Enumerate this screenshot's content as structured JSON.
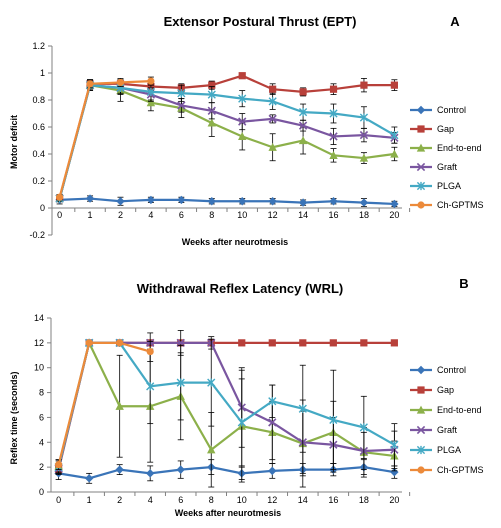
{
  "chart_data": [
    {
      "type": "line",
      "panel_label": "A",
      "title": "Extensor Postural Thrust (EPT)",
      "xlabel": "Weeks after neurotmesis",
      "ylabel": "Motor deficit",
      "x_ticks": [
        0,
        1,
        2,
        4,
        6,
        8,
        10,
        12,
        14,
        16,
        18,
        20
      ],
      "y_ticks": [
        "-0.2",
        "0",
        "0.2",
        "0.4",
        "0.6",
        "0.8",
        "1",
        "1.2"
      ],
      "ylim": [
        -0.2,
        1.2
      ],
      "grid": false,
      "legend_position": "right",
      "series": [
        {
          "name": "Control",
          "color": "#3a74b8",
          "marker": "diamond",
          "x": [
            0,
            1,
            2,
            4,
            6,
            8,
            10,
            12,
            14,
            16,
            18,
            20
          ],
          "y": [
            0.06,
            0.07,
            0.05,
            0.06,
            0.06,
            0.05,
            0.05,
            0.05,
            0.04,
            0.05,
            0.04,
            0.03
          ],
          "err": [
            0.03,
            0.02,
            0.03,
            0.02,
            0.02,
            0.02,
            0.02,
            0.02,
            0.02,
            0.02,
            0.03,
            0.02
          ]
        },
        {
          "name": "Gap",
          "color": "#b8403a",
          "marker": "square",
          "x": [
            0,
            1,
            2,
            4,
            6,
            8,
            10,
            12,
            14,
            16,
            18,
            20
          ],
          "y": [
            0.07,
            0.92,
            0.92,
            0.9,
            0.89,
            0.91,
            0.98,
            0.88,
            0.86,
            0.88,
            0.91,
            0.91
          ],
          "err": [
            0.02,
            0.03,
            0.03,
            0.03,
            0.03,
            0.03,
            0.02,
            0.04,
            0.03,
            0.04,
            0.05,
            0.04
          ]
        },
        {
          "name": "End-to-end",
          "color": "#8cb04a",
          "marker": "triangle",
          "x": [
            0,
            1,
            2,
            4,
            6,
            8,
            10,
            12,
            14,
            16,
            18,
            20
          ],
          "y": [
            0.07,
            0.91,
            0.87,
            0.78,
            0.74,
            0.63,
            0.53,
            0.45,
            0.5,
            0.39,
            0.37,
            0.4
          ],
          "err": [
            0.02,
            0.04,
            0.08,
            0.06,
            0.07,
            0.1,
            0.1,
            0.1,
            0.1,
            0.05,
            0.04,
            0.05
          ]
        },
        {
          "name": "Graft",
          "color": "#7a56a0",
          "marker": "x",
          "x": [
            0,
            1,
            2,
            4,
            6,
            8,
            10,
            12,
            14,
            16,
            18,
            20
          ],
          "y": [
            0.07,
            0.91,
            0.89,
            0.84,
            0.76,
            0.72,
            0.64,
            0.66,
            0.61,
            0.53,
            0.54,
            0.52
          ],
          "err": [
            0.02,
            0.03,
            0.04,
            0.05,
            0.05,
            0.06,
            0.06,
            0.03,
            0.04,
            0.06,
            0.05,
            0.04
          ]
        },
        {
          "name": "PLGA",
          "color": "#44a9c4",
          "marker": "star",
          "x": [
            0,
            1,
            2,
            4,
            6,
            8,
            10,
            12,
            14,
            16,
            18,
            20
          ],
          "y": [
            0.07,
            0.91,
            0.89,
            0.86,
            0.85,
            0.84,
            0.81,
            0.79,
            0.71,
            0.7,
            0.67,
            0.54
          ],
          "err": [
            0.02,
            0.04,
            0.05,
            0.06,
            0.06,
            0.06,
            0.06,
            0.06,
            0.06,
            0.07,
            0.08,
            0.06
          ]
        },
        {
          "name": "Ch-GPTMS",
          "color": "#ec8a3a",
          "marker": "circle",
          "x": [
            0,
            1,
            2,
            4
          ],
          "y": [
            0.08,
            0.92,
            0.93,
            0.94
          ],
          "err": [
            0.02,
            0.03,
            0.03,
            0.03
          ]
        }
      ]
    },
    {
      "type": "line",
      "panel_label": "B",
      "title": "Withdrawal  Reflex Latency (WRL)",
      "xlabel": "Weeks after neurotmesis",
      "ylabel": "Reflex time (seconds)",
      "x_ticks": [
        0,
        1,
        2,
        4,
        6,
        8,
        10,
        12,
        14,
        16,
        18,
        20
      ],
      "y_ticks": [
        "0",
        "2",
        "4",
        "6",
        "8",
        "10",
        "12",
        "14"
      ],
      "ylim": [
        0,
        14
      ],
      "grid": false,
      "legend_position": "right",
      "series": [
        {
          "name": "Control",
          "color": "#3a74b8",
          "marker": "diamond",
          "x": [
            0,
            1,
            2,
            4,
            6,
            8,
            10,
            12,
            14,
            16,
            18,
            20
          ],
          "y": [
            1.5,
            1.1,
            1.8,
            1.5,
            1.8,
            2.0,
            1.5,
            1.7,
            1.8,
            1.8,
            2.0,
            1.6
          ],
          "err": [
            0.5,
            0.4,
            0.4,
            0.6,
            0.7,
            0.6,
            0.5,
            0.6,
            0.5,
            0.5,
            0.6,
            0.5
          ]
        },
        {
          "name": "Gap",
          "color": "#b8403a",
          "marker": "square",
          "x": [
            0,
            1,
            2,
            4,
            6,
            8,
            10,
            12,
            14,
            16,
            18,
            20
          ],
          "y": [
            1.8,
            12,
            12,
            12,
            12,
            12,
            12,
            12,
            12,
            12,
            12,
            12
          ],
          "err": [
            0.4,
            0,
            0,
            0,
            0,
            0,
            0,
            0,
            0,
            0,
            0,
            0
          ]
        },
        {
          "name": "End-to-end",
          "color": "#8cb04a",
          "marker": "triangle",
          "x": [
            0,
            1,
            2,
            4,
            6,
            8,
            10,
            12,
            14,
            16,
            18,
            20
          ],
          "y": [
            2.1,
            12,
            6.9,
            6.9,
            7.7,
            3.4,
            5.3,
            4.8,
            3.9,
            4.8,
            3.2,
            2.9
          ],
          "err": [
            0.5,
            0,
            4.1,
            4.5,
            3.5,
            3.0,
            4.5,
            2.5,
            3.5,
            2.5,
            2.0,
            1.2
          ]
        },
        {
          "name": "Graft",
          "color": "#7a56a0",
          "marker": "x",
          "x": [
            0,
            1,
            2,
            4,
            6,
            8,
            10,
            12,
            14,
            16,
            18,
            20
          ],
          "y": [
            1.9,
            12,
            12,
            12,
            12,
            12,
            6.8,
            5.6,
            4.0,
            3.8,
            3.3,
            3.4
          ],
          "err": [
            0.4,
            0,
            0,
            0.8,
            1.0,
            0.5,
            3.2,
            3.0,
            2.5,
            2.2,
            1.5,
            1.5
          ]
        },
        {
          "name": "PLGA",
          "color": "#44a9c4",
          "marker": "star",
          "x": [
            0,
            1,
            2,
            4,
            6,
            8,
            10,
            12,
            14,
            16,
            18,
            20
          ],
          "y": [
            2.0,
            12,
            12,
            8.5,
            8.8,
            8.8,
            5.6,
            7.3,
            6.7,
            5.8,
            5.2,
            3.8
          ],
          "err": [
            0.5,
            0,
            0,
            3.0,
            3.0,
            3.5,
            3.5,
            1.3,
            3.5,
            4.0,
            2.5,
            1.7
          ]
        },
        {
          "name": "Ch-GPTMS",
          "color": "#ec8a3a",
          "marker": "circle",
          "x": [
            0,
            1,
            2,
            4
          ],
          "y": [
            2.2,
            12,
            12,
            11.3
          ],
          "err": [
            0.4,
            0,
            0,
            0.8
          ]
        }
      ]
    }
  ]
}
